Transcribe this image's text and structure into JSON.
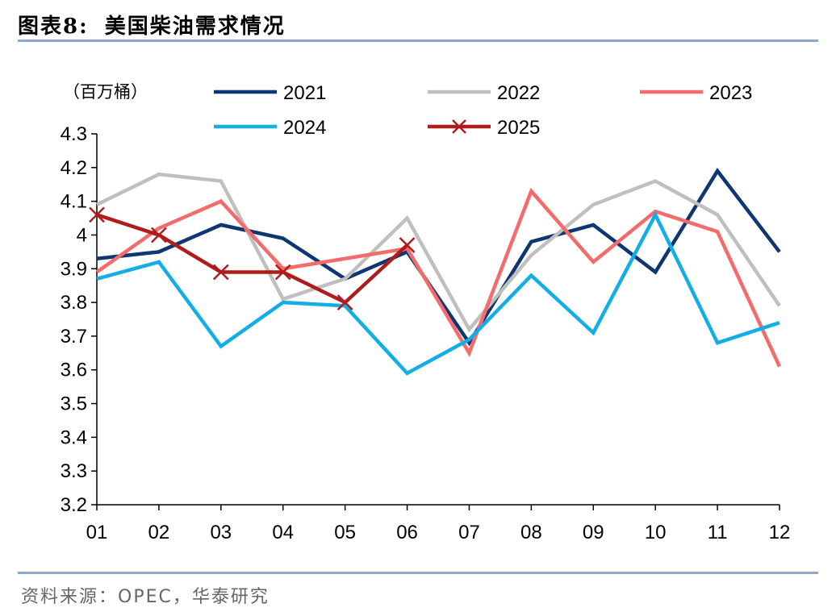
{
  "figure": {
    "number": "图表8:",
    "title": "美国柴油需求情况",
    "source": "资料来源：OPEC，华泰研究"
  },
  "chart_data": {
    "type": "line",
    "title": "",
    "ylabel": "（百万桶）",
    "xlabel": "",
    "categories": [
      "01",
      "02",
      "03",
      "04",
      "05",
      "06",
      "07",
      "08",
      "09",
      "10",
      "11",
      "12"
    ],
    "ylim": [
      3.2,
      4.3
    ],
    "yticks": [
      "3.2",
      "3.3",
      "3.4",
      "3.5",
      "3.6",
      "3.7",
      "3.8",
      "3.9",
      "4",
      "4.1",
      "4.2",
      "4.3"
    ],
    "grid": false,
    "legend_position": "top",
    "series": [
      {
        "name": "2021",
        "color": "#0d3673",
        "marker": "none",
        "values": [
          3.93,
          3.95,
          4.03,
          3.99,
          3.87,
          3.95,
          3.68,
          3.98,
          4.03,
          3.89,
          4.19,
          3.95
        ]
      },
      {
        "name": "2022",
        "color": "#bfbfbf",
        "marker": "none",
        "values": [
          4.09,
          4.18,
          4.16,
          3.81,
          3.87,
          4.05,
          3.72,
          3.94,
          4.09,
          4.16,
          4.06,
          3.79
        ]
      },
      {
        "name": "2023",
        "color": "#f46b6b",
        "marker": "none",
        "values": [
          3.89,
          4.02,
          4.1,
          3.9,
          3.93,
          3.96,
          3.65,
          4.13,
          3.92,
          4.07,
          4.01,
          3.61
        ]
      },
      {
        "name": "2024",
        "color": "#14aee6",
        "marker": "none",
        "values": [
          3.87,
          3.92,
          3.67,
          3.8,
          3.79,
          3.59,
          3.69,
          3.88,
          3.71,
          4.06,
          3.68,
          3.74
        ]
      },
      {
        "name": "2025",
        "color": "#b01c1c",
        "marker": "x",
        "values": [
          4.06,
          4.0,
          3.89,
          3.89,
          3.8,
          3.97,
          null,
          null,
          null,
          null,
          null,
          null
        ]
      }
    ]
  }
}
